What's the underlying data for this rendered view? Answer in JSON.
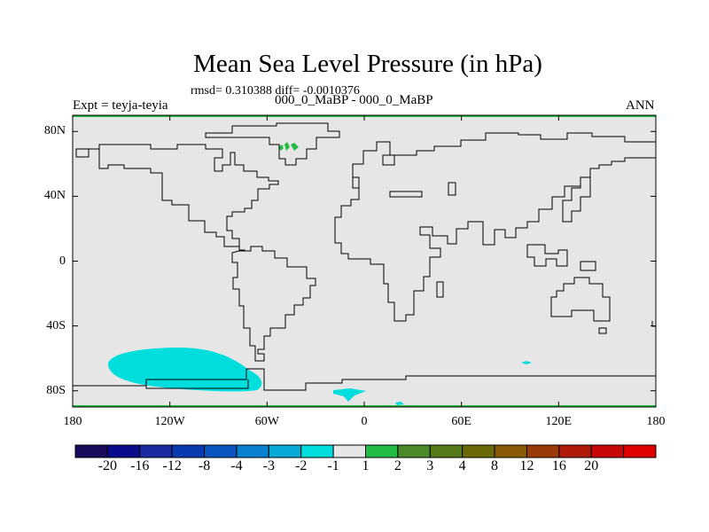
{
  "title": "Mean Sea Level Pressure (in hPa)",
  "stats": "rmsd= 0.310388 diff= -0.0010376",
  "left_label": "Expt = teyja-teyia",
  "center_label": "000_0_MaBP - 000_0_MaBP",
  "right_label": "ANN",
  "map": {
    "projection": "cylindrical-equidistant",
    "lon_range": [
      -180,
      180
    ],
    "lat_range": [
      -90,
      90
    ],
    "y_ticks": [
      {
        "lat": 80,
        "label": "80N"
      },
      {
        "lat": 40,
        "label": "40N"
      },
      {
        "lat": 0,
        "label": "0"
      },
      {
        "lat": -40,
        "label": "40S"
      },
      {
        "lat": -80,
        "label": "80S"
      }
    ],
    "x_ticks": [
      {
        "lon": -180,
        "label": "180"
      },
      {
        "lon": -120,
        "label": "120W"
      },
      {
        "lon": -60,
        "label": "60W"
      },
      {
        "lon": 0,
        "label": "0"
      },
      {
        "lon": 60,
        "label": "60E"
      },
      {
        "lon": 120,
        "label": "120E"
      },
      {
        "lon": 180,
        "label": "180"
      }
    ],
    "background_color": "#e6e6e6",
    "coastline_color": "#000000",
    "anomaly_regions": [
      {
        "name": "south-pacific-negative",
        "level": "-2 to -1",
        "color": "#00dddd"
      },
      {
        "name": "weddell-sea-negative",
        "level": "-2 to -1",
        "color": "#00dddd"
      },
      {
        "name": "indian-ocean-negative-small",
        "level": "-2 to -1",
        "color": "#00dddd"
      },
      {
        "name": "greenland-positive",
        "level": "1 to 2",
        "color": "#22bb44"
      },
      {
        "name": "north-pole-positive",
        "level": "1 to 2",
        "color": "#22bb44"
      },
      {
        "name": "south-pole-positive",
        "level": "1 to 2",
        "color": "#22bb44"
      }
    ]
  },
  "colorbar": {
    "colors": [
      "#1a0a5c",
      "#0a0a8c",
      "#1a2aa0",
      "#0a3ab0",
      "#0a55c0",
      "#0a80d0",
      "#08aad8",
      "#00dddd",
      "#e6e6e6",
      "#22bb44",
      "#4a8a28",
      "#557a18",
      "#6a6a08",
      "#8a5a08",
      "#9a3a08",
      "#b01a08",
      "#c80808",
      "#e00000"
    ],
    "labels": [
      "-20",
      "-16",
      "-12",
      "-8",
      "-4",
      "-3",
      "-2",
      "-1",
      "1",
      "2",
      "3",
      "4",
      "8",
      "12",
      "16",
      "20"
    ]
  }
}
